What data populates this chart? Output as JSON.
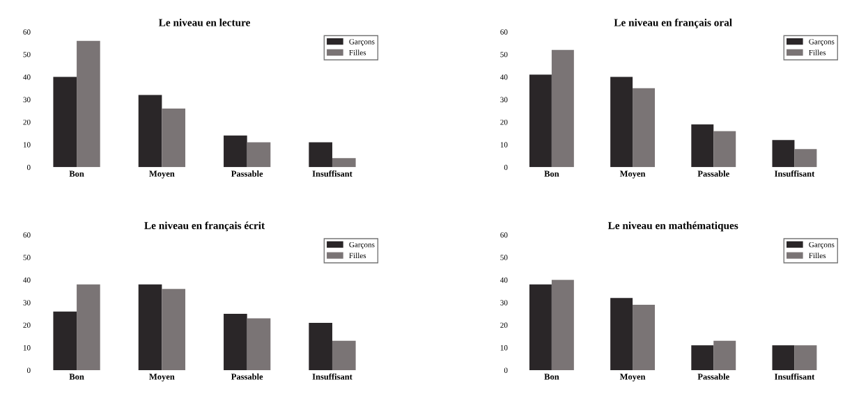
{
  "chart_data": [
    {
      "type": "bar",
      "title": "Le niveau en lecture",
      "categories": [
        "Bon",
        "Moyen",
        "Passable",
        "Insuffisant"
      ],
      "series": [
        {
          "name": "Garçons",
          "color": "#2a2628",
          "values": [
            40,
            32,
            14,
            11
          ]
        },
        {
          "name": "Filles",
          "color": "#7a7475",
          "values": [
            56,
            26,
            11,
            4
          ]
        }
      ],
      "ylim": [
        0,
        60
      ],
      "yticks": [
        0,
        10,
        20,
        30,
        40,
        50,
        60
      ],
      "grid": false,
      "legend": "top right"
    },
    {
      "type": "bar",
      "title": "Le niveau en français oral",
      "categories": [
        "Bon",
        "Moyen",
        "Passable",
        "Insuffisant"
      ],
      "series": [
        {
          "name": "Garçons",
          "color": "#2a2628",
          "values": [
            41,
            40,
            19,
            12
          ]
        },
        {
          "name": "Filles",
          "color": "#7a7475",
          "values": [
            52,
            35,
            16,
            8
          ]
        }
      ],
      "ylim": [
        0,
        60
      ],
      "yticks": [
        0,
        10,
        20,
        30,
        40,
        50,
        60
      ],
      "grid": false,
      "legend": "top right"
    },
    {
      "type": "bar",
      "title": "Le niveau en français écrit",
      "categories": [
        "Bon",
        "Moyen",
        "Passable",
        "Insuffisant"
      ],
      "series": [
        {
          "name": "Garçons",
          "color": "#2a2628",
          "values": [
            26,
            38,
            25,
            21
          ]
        },
        {
          "name": "Filles",
          "color": "#7a7475",
          "values": [
            38,
            36,
            23,
            13
          ]
        }
      ],
      "ylim": [
        0,
        60
      ],
      "yticks": [
        0,
        10,
        20,
        30,
        40,
        50,
        60
      ],
      "grid": false,
      "legend": "top right"
    },
    {
      "type": "bar",
      "title": "Le niveau en mathématiques",
      "categories": [
        "Bon",
        "Moyen",
        "Passable",
        "Insuffisant"
      ],
      "series": [
        {
          "name": "Garçons",
          "color": "#2a2628",
          "values": [
            38,
            32,
            11,
            11
          ]
        },
        {
          "name": "Filles",
          "color": "#7a7475",
          "values": [
            40,
            29,
            13,
            11
          ]
        }
      ],
      "ylim": [
        0,
        60
      ],
      "yticks": [
        0,
        10,
        20,
        30,
        40,
        50,
        60
      ],
      "grid": false,
      "legend": "top right"
    }
  ]
}
